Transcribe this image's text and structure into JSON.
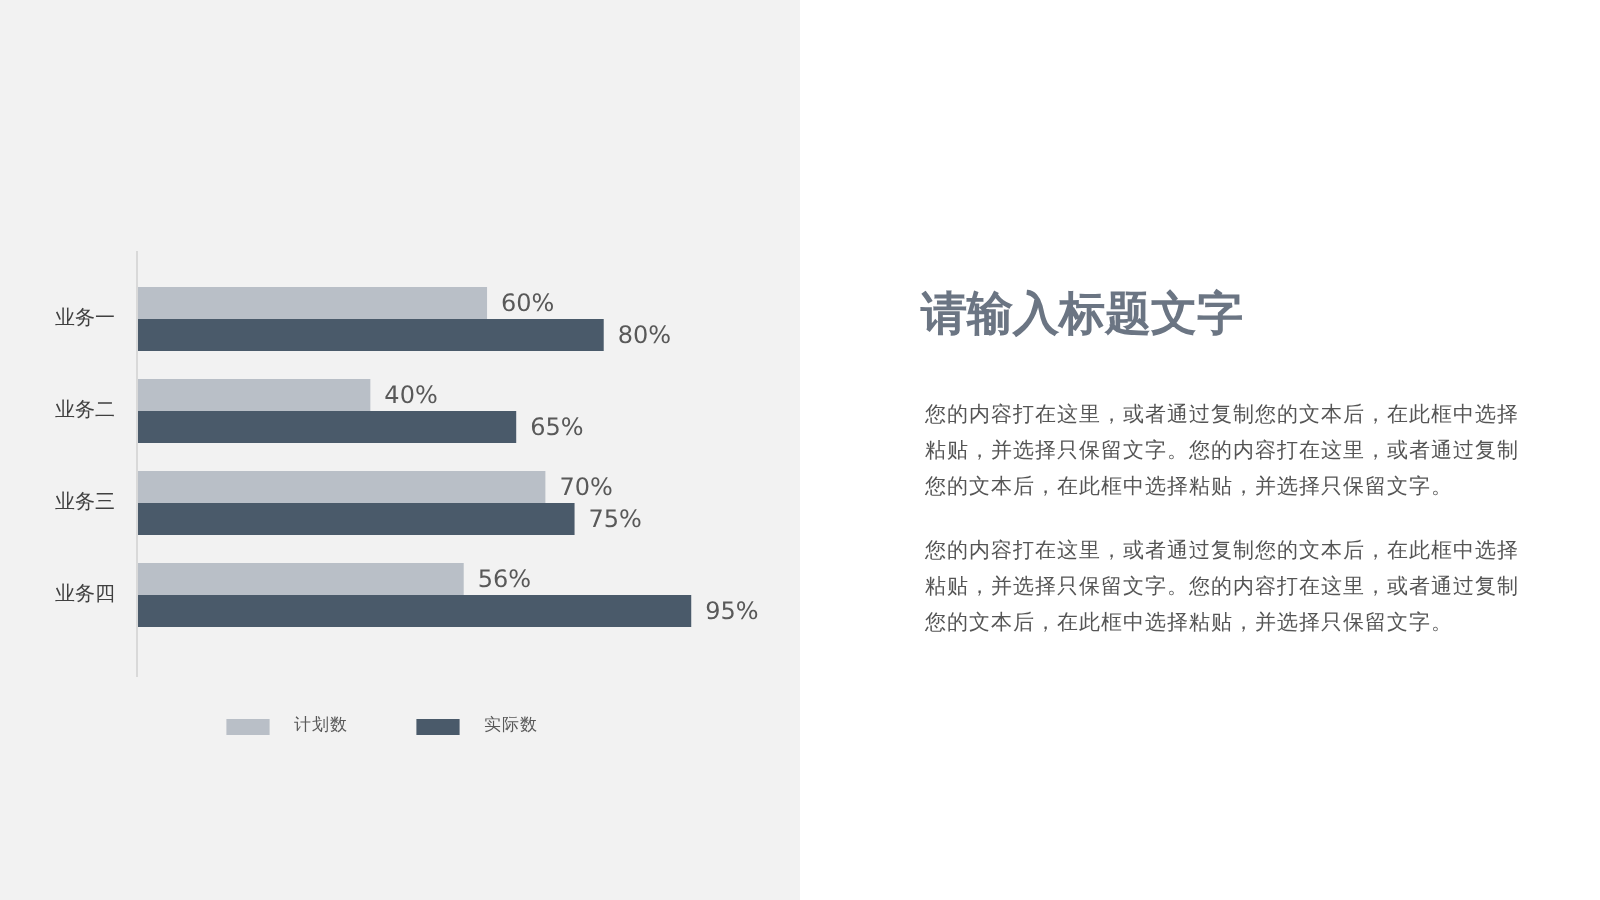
{
  "chart_data": [
    {
      "type": "bar",
      "orientation": "horizontal",
      "categories": [
        "业务一",
        "业务二",
        "业务三",
        "业务四"
      ],
      "series": [
        {
          "name": "计划数",
          "color": "#b9bfc7",
          "values": [
            60,
            40,
            70,
            56
          ],
          "value_labels": [
            "60%",
            "40%",
            "70%",
            "56%"
          ]
        },
        {
          "name": "实际数",
          "color": "#4a5a6a",
          "values": [
            80,
            65,
            75,
            95
          ],
          "value_labels": [
            "80%",
            "65%",
            "75%",
            "95%"
          ]
        }
      ],
      "legend": "bottom",
      "grid": false
    },
    {
      "type": "other",
      "title": "请输入标题文字",
      "annotations": [
        "您的内容打在这里，或者通过复制您的文本后，在此框中选择粘贴，并选择只保留文字。您的内容打在这里，或者通过复制您的文本后，在此框中选择粘贴，并选择只保留文字。",
        "您的内容打在这里，或者通过复制您的文本后，在此框中选择粘贴，并选择只保留文字。您的内容打在这里，或者通过复制您的文本后，在此框中选择粘贴，并选择只保留文字。"
      ]
    }
  ]
}
